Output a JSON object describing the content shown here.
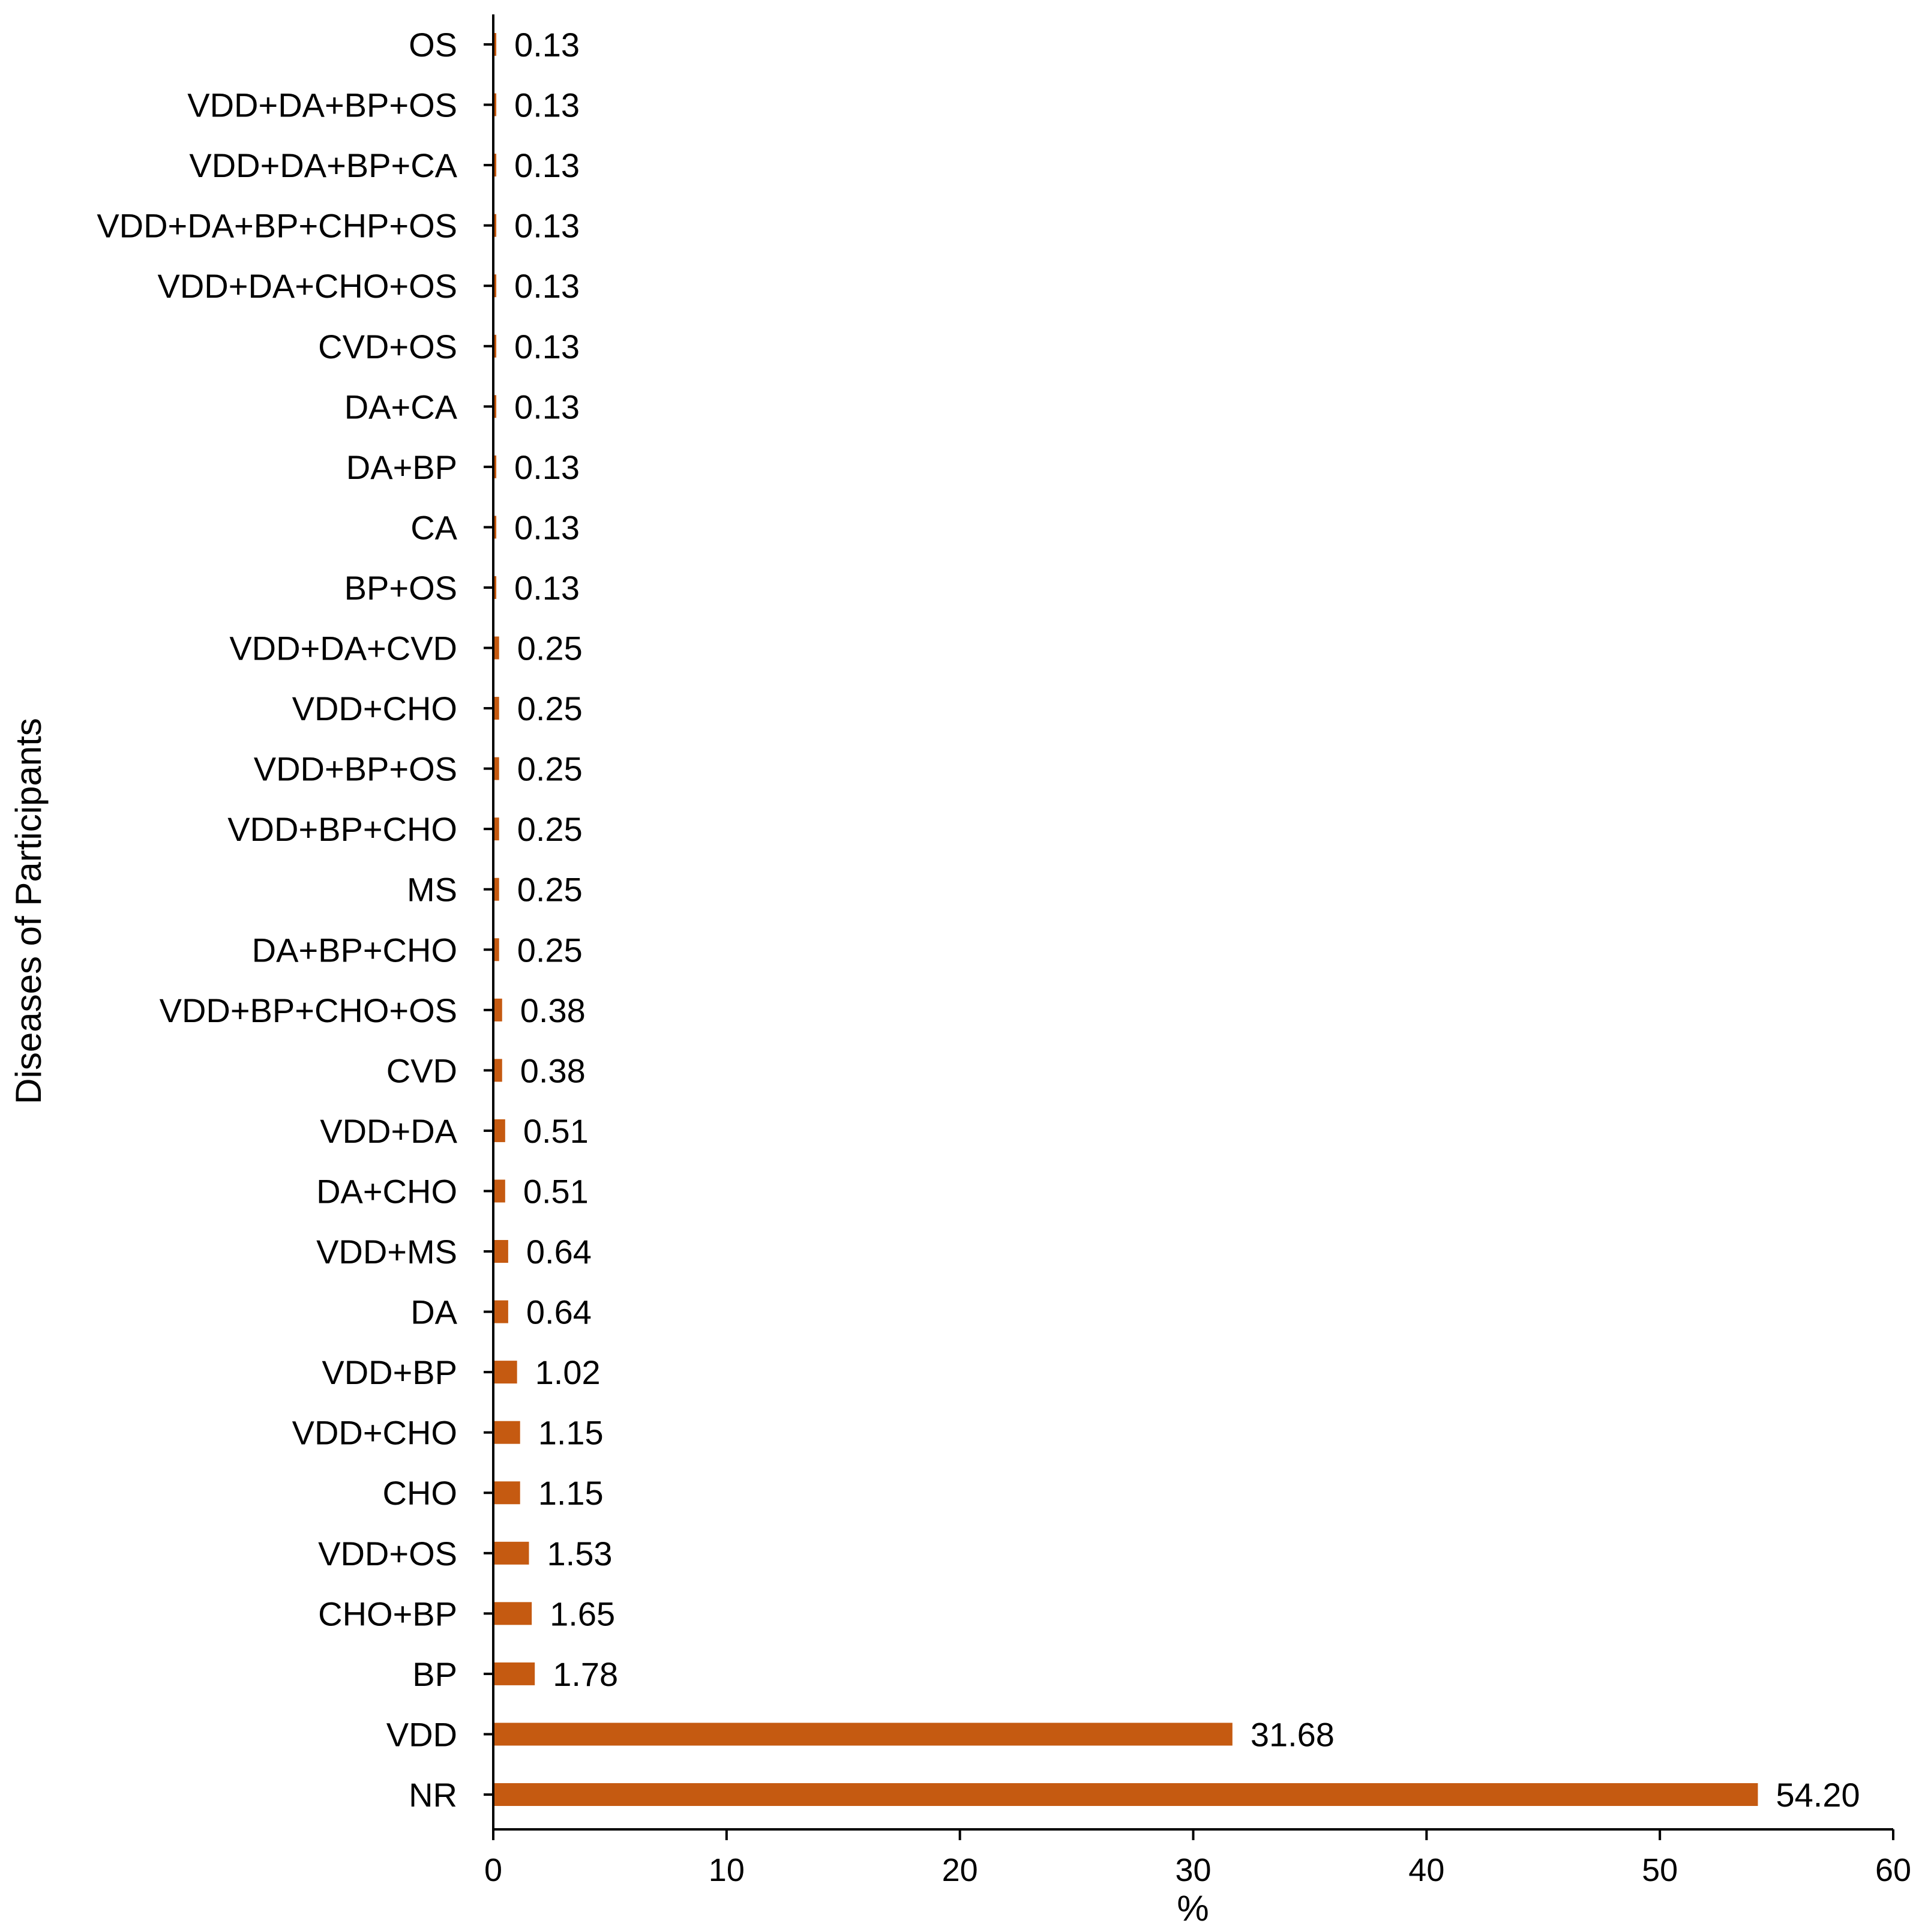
{
  "chart_data": {
    "type": "bar",
    "orientation": "horizontal",
    "title": "",
    "xlabel": "%",
    "ylabel": "Diseases of Participants",
    "xlim": [
      0,
      60
    ],
    "xticks": [
      0,
      10,
      20,
      30,
      40,
      50,
      60
    ],
    "grid": false,
    "legend": "none",
    "bar_color": "#c55a11",
    "categories": [
      "OS",
      "VDD+DA+BP+OS",
      "VDD+DA+BP+CA",
      "VDD+DA+BP+CHP+OS",
      "VDD+DA+CHO+OS",
      "CVD+OS",
      "DA+CA",
      "DA+BP",
      "CA",
      "BP+OS",
      "VDD+DA+CVD",
      "VDD+CHO",
      "VDD+BP+OS",
      "VDD+BP+CHO",
      "MS",
      "DA+BP+CHO",
      "VDD+BP+CHO+OS",
      "CVD",
      "VDD+DA",
      "DA+CHO",
      "VDD+MS",
      "DA",
      "VDD+BP",
      "VDD+CHO",
      "CHO",
      "VDD+OS",
      "CHO+BP",
      "BP",
      "VDD",
      "NR"
    ],
    "values": [
      0.13,
      0.13,
      0.13,
      0.13,
      0.13,
      0.13,
      0.13,
      0.13,
      0.13,
      0.13,
      0.25,
      0.25,
      0.25,
      0.25,
      0.25,
      0.25,
      0.38,
      0.38,
      0.51,
      0.51,
      0.64,
      0.64,
      1.02,
      1.15,
      1.15,
      1.53,
      1.65,
      1.78,
      31.68,
      54.2
    ],
    "value_labels": [
      "0.13",
      "0.13",
      "0.13",
      "0.13",
      "0.13",
      "0.13",
      "0.13",
      "0.13",
      "0.13",
      "0.13",
      "0.25",
      "0.25",
      "0.25",
      "0.25",
      "0.25",
      "0.25",
      "0.38",
      "0.38",
      "0.51",
      "0.51",
      "0.64",
      "0.64",
      "1.02",
      "1.15",
      "1.15",
      "1.53",
      "1.65",
      "1.78",
      "31.68",
      "54.20"
    ]
  }
}
